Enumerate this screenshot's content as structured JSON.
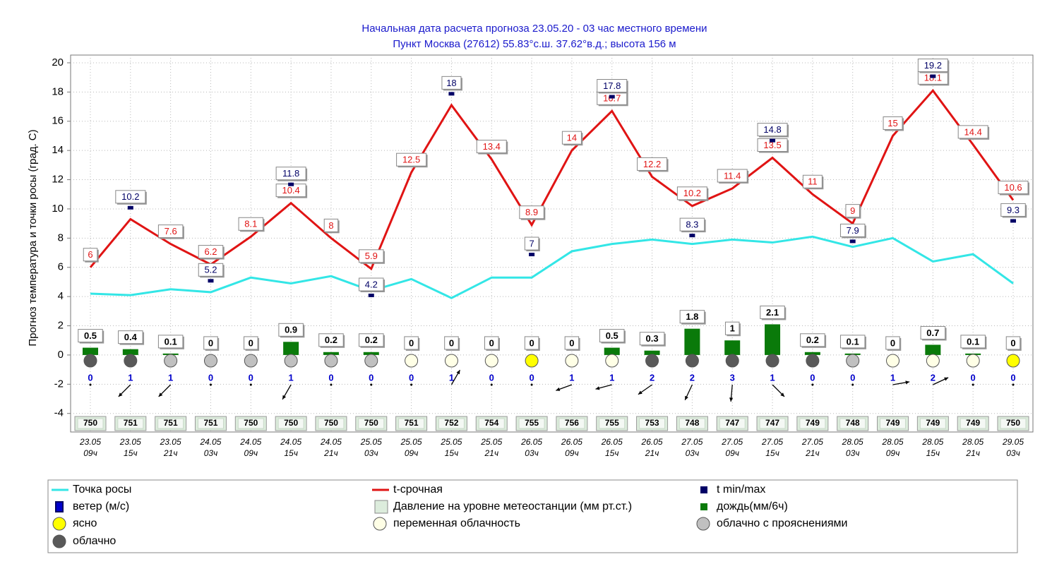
{
  "chart_data": {
    "type": "line",
    "title": "Начальная дата расчета прогноза 23.05.20 - 03 час местного времени",
    "subtitle": "Пункт  Москва (27612)   55.83°с.ш.  37.62°в.д.; высота 156 м",
    "y_label": "Прогноз температура и точки росы (град. С)",
    "categories": [
      [
        "23.05",
        "09ч"
      ],
      [
        "23.05",
        "15ч"
      ],
      [
        "23.05",
        "21ч"
      ],
      [
        "24.05",
        "03ч"
      ],
      [
        "24.05",
        "09ч"
      ],
      [
        "24.05",
        "15ч"
      ],
      [
        "24.05",
        "21ч"
      ],
      [
        "25.05",
        "03ч"
      ],
      [
        "25.05",
        "09ч"
      ],
      [
        "25.05",
        "15ч"
      ],
      [
        "25.05",
        "21ч"
      ],
      [
        "26.05",
        "03ч"
      ],
      [
        "26.05",
        "09ч"
      ],
      [
        "26.05",
        "15ч"
      ],
      [
        "26.05",
        "21ч"
      ],
      [
        "27.05",
        "03ч"
      ],
      [
        "27.05",
        "09ч"
      ],
      [
        "27.05",
        "15ч"
      ],
      [
        "27.05",
        "21ч"
      ],
      [
        "28.05",
        "03ч"
      ],
      [
        "28.05",
        "09ч"
      ],
      [
        "28.05",
        "15ч"
      ],
      [
        "28.05",
        "21ч"
      ],
      [
        "29.05",
        "03ч"
      ]
    ],
    "ylim": [
      -5.27,
      20.53
    ],
    "yticks": [
      -4,
      -2,
      0,
      2,
      4,
      6,
      8,
      10,
      12,
      14,
      16,
      18,
      20
    ],
    "grid": true,
    "series": [
      {
        "name": "Точка росы",
        "color": "#33e6e6",
        "values": [
          4.2,
          4.1,
          4.5,
          4.3,
          5.3,
          4.9,
          5.4,
          4.4,
          5.2,
          3.9,
          5.3,
          5.3,
          7.1,
          7.6,
          7.9,
          7.6,
          7.9,
          7.7,
          8.1,
          7.4,
          8.0,
          6.4,
          6.9,
          4.9
        ]
      },
      {
        "name": "t-срочная",
        "color": "#e01414",
        "values": [
          6,
          9.3,
          7.6,
          6.2,
          8.1,
          10.4,
          8,
          5.9,
          12.5,
          17.1,
          13.4,
          8.9,
          14,
          16.7,
          12.2,
          10.2,
          11.4,
          13.5,
          11,
          9,
          15,
          18.1,
          14.4,
          10.6
        ],
        "value_labels": [
          "6",
          null,
          "7.6",
          "6.2",
          "8.1",
          "10.4",
          "8",
          "5.9",
          "12.5",
          null,
          "13.4",
          "8.9",
          "14",
          "16.7",
          "12.2",
          "10.2",
          "11.4",
          "13.5",
          "11",
          "9",
          "15",
          "18.1",
          "14.4",
          "10.6"
        ]
      },
      {
        "name": "t min/max",
        "color": "#000066",
        "values": [
          null,
          10.2,
          null,
          5.2,
          null,
          11.8,
          null,
          4.2,
          null,
          18,
          null,
          7,
          null,
          17.8,
          null,
          8.3,
          null,
          14.8,
          null,
          7.9,
          null,
          19.2,
          null,
          9.3
        ]
      }
    ],
    "rain": {
      "name": "дождь(мм/6ч)",
      "color": "#0a7a0a",
      "values": [
        0.5,
        0.4,
        0.1,
        0,
        0,
        0.9,
        0.2,
        0.2,
        0,
        0,
        0,
        0,
        0,
        0.5,
        0.3,
        1.8,
        1,
        2.1,
        0.2,
        0.1,
        0,
        0.7,
        0.1,
        0
      ]
    },
    "wind": {
      "name": "ветер (м/с)",
      "color": "#0000cc",
      "values": [
        0,
        1,
        1,
        0,
        0,
        1,
        0,
        0,
        0,
        1,
        0,
        0,
        1,
        1,
        2,
        2,
        3,
        1,
        0,
        0,
        1,
        2,
        0,
        0
      ],
      "directions": [
        null,
        225,
        225,
        null,
        null,
        240,
        null,
        null,
        null,
        60,
        null,
        null,
        200,
        195,
        215,
        245,
        265,
        315,
        null,
        null,
        10,
        25,
        null,
        null
      ]
    },
    "pressure": {
      "name": "Давление на уровне метеостанции (мм рт.ст.)",
      "color": "#dcecdc",
      "values": [
        750,
        751,
        751,
        751,
        750,
        750,
        750,
        750,
        751,
        752,
        754,
        755,
        756,
        755,
        753,
        748,
        747,
        747,
        749,
        748,
        749,
        749,
        749,
        750
      ]
    },
    "cloud": {
      "classes": [
        {
          "name": "ясно",
          "color": "#ffff00"
        },
        {
          "name": "переменная облачность",
          "color": "#ffffe6"
        },
        {
          "name": "облачно с прояснениями",
          "color": "#c0c0c0"
        },
        {
          "name": "облачно",
          "color": "#595959"
        }
      ],
      "values": [
        3,
        3,
        2,
        2,
        2,
        2,
        2,
        2,
        1,
        1,
        1,
        0,
        1,
        1,
        3,
        3,
        3,
        3,
        3,
        2,
        1,
        1,
        1,
        0
      ]
    }
  }
}
